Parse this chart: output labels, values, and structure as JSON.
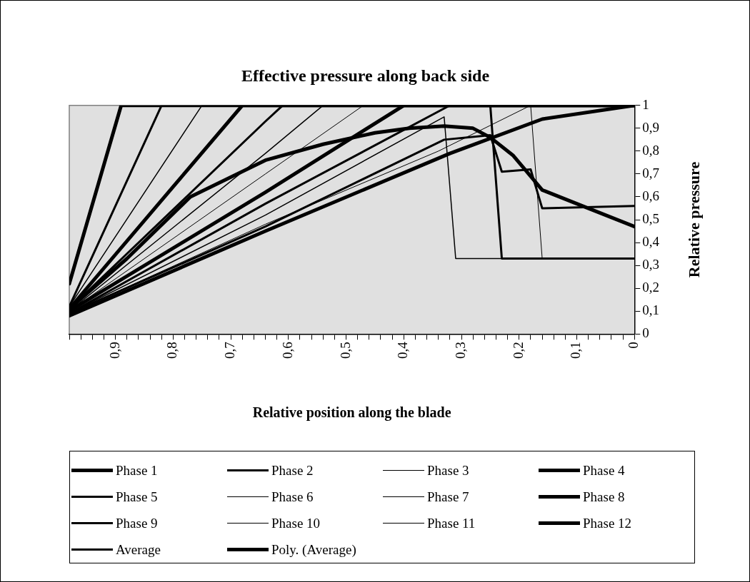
{
  "chart_data": {
    "type": "line",
    "title": "Effective pressure along back side",
    "xlabel": "Relative position along the blade",
    "ylabel": "Relative pressure",
    "xlim": [
      0.98,
      0
    ],
    "xticks": [
      {
        "value": 0.98,
        "label": null
      },
      {
        "value": 0.96,
        "label": null
      },
      {
        "value": 0.94,
        "label": null
      },
      {
        "value": 0.92,
        "label": null
      },
      {
        "value": 0.9,
        "label": "0,9"
      },
      {
        "value": 0.88,
        "label": null
      },
      {
        "value": 0.86,
        "label": null
      },
      {
        "value": 0.84,
        "label": null
      },
      {
        "value": 0.82,
        "label": null
      },
      {
        "value": 0.8,
        "label": "0,8"
      },
      {
        "value": 0.78,
        "label": null
      },
      {
        "value": 0.76,
        "label": null
      },
      {
        "value": 0.74,
        "label": null
      },
      {
        "value": 0.72,
        "label": null
      },
      {
        "value": 0.7,
        "label": "0,7"
      },
      {
        "value": 0.68,
        "label": null
      },
      {
        "value": 0.66,
        "label": null
      },
      {
        "value": 0.64,
        "label": null
      },
      {
        "value": 0.62,
        "label": null
      },
      {
        "value": 0.6,
        "label": "0,6"
      },
      {
        "value": 0.58,
        "label": null
      },
      {
        "value": 0.56,
        "label": null
      },
      {
        "value": 0.54,
        "label": null
      },
      {
        "value": 0.52,
        "label": null
      },
      {
        "value": 0.5,
        "label": "0,5"
      },
      {
        "value": 0.48,
        "label": null
      },
      {
        "value": 0.46,
        "label": null
      },
      {
        "value": 0.44,
        "label": null
      },
      {
        "value": 0.42,
        "label": null
      },
      {
        "value": 0.4,
        "label": "0,4"
      },
      {
        "value": 0.38,
        "label": null
      },
      {
        "value": 0.36,
        "label": null
      },
      {
        "value": 0.34,
        "label": null
      },
      {
        "value": 0.32,
        "label": null
      },
      {
        "value": 0.3,
        "label": "0,3"
      },
      {
        "value": 0.28,
        "label": null
      },
      {
        "value": 0.26,
        "label": null
      },
      {
        "value": 0.24,
        "label": null
      },
      {
        "value": 0.22,
        "label": null
      },
      {
        "value": 0.2,
        "label": "0,2"
      },
      {
        "value": 0.18,
        "label": null
      },
      {
        "value": 0.16,
        "label": null
      },
      {
        "value": 0.14,
        "label": null
      },
      {
        "value": 0.12,
        "label": null
      },
      {
        "value": 0.1,
        "label": "0,1"
      },
      {
        "value": 0.08,
        "label": null
      },
      {
        "value": 0.06,
        "label": null
      },
      {
        "value": 0.04,
        "label": null
      },
      {
        "value": 0.02,
        "label": null
      },
      0
    ],
    "ylim": [
      0,
      1
    ],
    "yticks": [
      0,
      {
        "value": 0.1,
        "label": "0,1"
      },
      {
        "value": 0.2,
        "label": "0,2"
      },
      {
        "value": 0.3,
        "label": "0,3"
      },
      {
        "value": 0.4,
        "label": "0,4"
      },
      {
        "value": 0.5,
        "label": "0,5"
      },
      {
        "value": 0.6,
        "label": "0,6"
      },
      {
        "value": 0.7,
        "label": "0,7"
      },
      {
        "value": 0.8,
        "label": "0,8"
      },
      {
        "value": 0.9,
        "label": "0,9"
      },
      1
    ],
    "legend": "bottom",
    "series": [
      {
        "name": "Phase 1",
        "color": "#000000",
        "x": [
          0.98,
          0.89,
          0
        ],
        "values": [
          0.22,
          1,
          1
        ]
      },
      {
        "name": "Phase 2",
        "color": "#000000",
        "x": [
          0.98,
          0.82,
          0
        ],
        "values": [
          0.12,
          1,
          1
        ]
      },
      {
        "name": "Phase 3",
        "color": "#000000",
        "x": [
          0.98,
          0.75,
          0
        ],
        "values": [
          0.12,
          1,
          1
        ]
      },
      {
        "name": "Phase 4",
        "color": "#000000",
        "x": [
          0.98,
          0.68,
          0
        ],
        "values": [
          0.11,
          1,
          1
        ]
      },
      {
        "name": "Phase 5",
        "color": "#000000",
        "x": [
          0.98,
          0.64,
          0.61,
          0
        ],
        "values": [
          0.11,
          0.93,
          1,
          1
        ]
      },
      {
        "name": "Phase 6",
        "color": "#000000",
        "x": [
          0.98,
          0.64,
          0.54,
          0
        ],
        "values": [
          0.1,
          0.79,
          1,
          1
        ]
      },
      {
        "name": "Phase 7",
        "color": "#000000",
        "x": [
          0.98,
          0.64,
          0.47,
          0
        ],
        "values": [
          0.1,
          0.7,
          1,
          1
        ]
      },
      {
        "name": "Phase 8",
        "color": "#000000",
        "x": [
          0.98,
          0.64,
          0.4,
          0
        ],
        "values": [
          0.1,
          0.62,
          1,
          1
        ]
      },
      {
        "name": "Phase 9",
        "color": "#000000",
        "x": [
          0.98,
          0.64,
          0.32,
          0.25,
          0.23,
          0
        ],
        "values": [
          0.09,
          0.57,
          1,
          1,
          0.33,
          0.33
        ]
      },
      {
        "name": "Phase 10",
        "color": "#000000",
        "x": [
          0.98,
          0.64,
          0.33,
          0.31,
          0
        ],
        "values": [
          0.09,
          0.52,
          0.95,
          0.33,
          0.33
        ]
      },
      {
        "name": "Phase 11",
        "color": "#000000",
        "x": [
          0.98,
          0.64,
          0.34,
          0.18,
          0.16,
          0
        ],
        "values": [
          0.09,
          0.48,
          0.8,
          1,
          0.33,
          0.33
        ]
      },
      {
        "name": "Phase 12",
        "color": "#000000",
        "x": [
          0.98,
          0.64,
          0.32,
          0.16,
          0
        ],
        "values": [
          0.08,
          0.45,
          0.79,
          0.94,
          1
        ]
      },
      {
        "name": "Average",
        "color": "#000000",
        "x": [
          0.98,
          0.64,
          0.33,
          0.25,
          0.23,
          0.18,
          0.16,
          0
        ],
        "values": [
          0.09,
          0.47,
          0.85,
          0.87,
          0.71,
          0.72,
          0.55,
          0.56
        ]
      },
      {
        "name": "Poly. (Average)",
        "color": "#000000",
        "x": [
          0.98,
          0.88,
          0.77,
          0.64,
          0.54,
          0.45,
          0.39,
          0.33,
          0.28,
          0.25,
          0.21,
          0.18,
          0.16,
          0.1,
          0
        ],
        "values": [
          0.11,
          0.33,
          0.6,
          0.76,
          0.83,
          0.88,
          0.9,
          0.91,
          0.9,
          0.86,
          0.78,
          0.69,
          0.63,
          0.57,
          0.47
        ]
      }
    ]
  }
}
